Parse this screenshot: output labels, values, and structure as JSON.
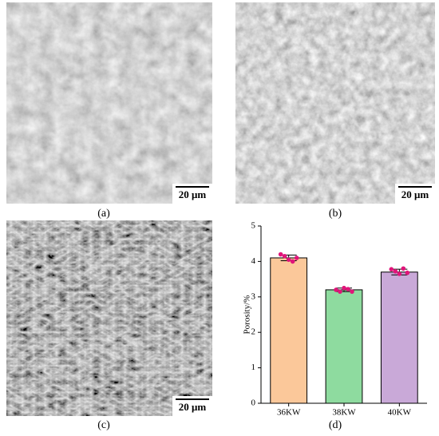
{
  "panels": [
    {
      "label": "(a)",
      "scale_bar": "20 μm"
    },
    {
      "label": "(b)",
      "scale_bar": "20 μm"
    },
    {
      "label": "(c)",
      "scale_bar": "20 μm"
    }
  ],
  "chart_data": {
    "type": "bar",
    "panel_label": "(d)",
    "ylabel": "Porosity/%",
    "categories": [
      "36KW",
      "38KW",
      "40KW"
    ],
    "values": [
      4.1,
      3.2,
      3.7
    ],
    "errors": [
      0.08,
      0.05,
      0.08
    ],
    "colors": [
      "#fbc89a",
      "#8edb9f",
      "#c9a9d8"
    ],
    "point_color": "#e0157a",
    "points": [
      [
        4.2,
        4.15,
        4.05,
        4.0,
        4.1
      ],
      [
        3.2,
        3.15,
        3.25,
        3.22,
        3.15
      ],
      [
        3.78,
        3.72,
        3.65,
        3.8,
        3.68
      ]
    ],
    "ylim": [
      0,
      5
    ],
    "yticks": [
      0,
      1,
      2,
      3,
      4,
      5
    ]
  }
}
